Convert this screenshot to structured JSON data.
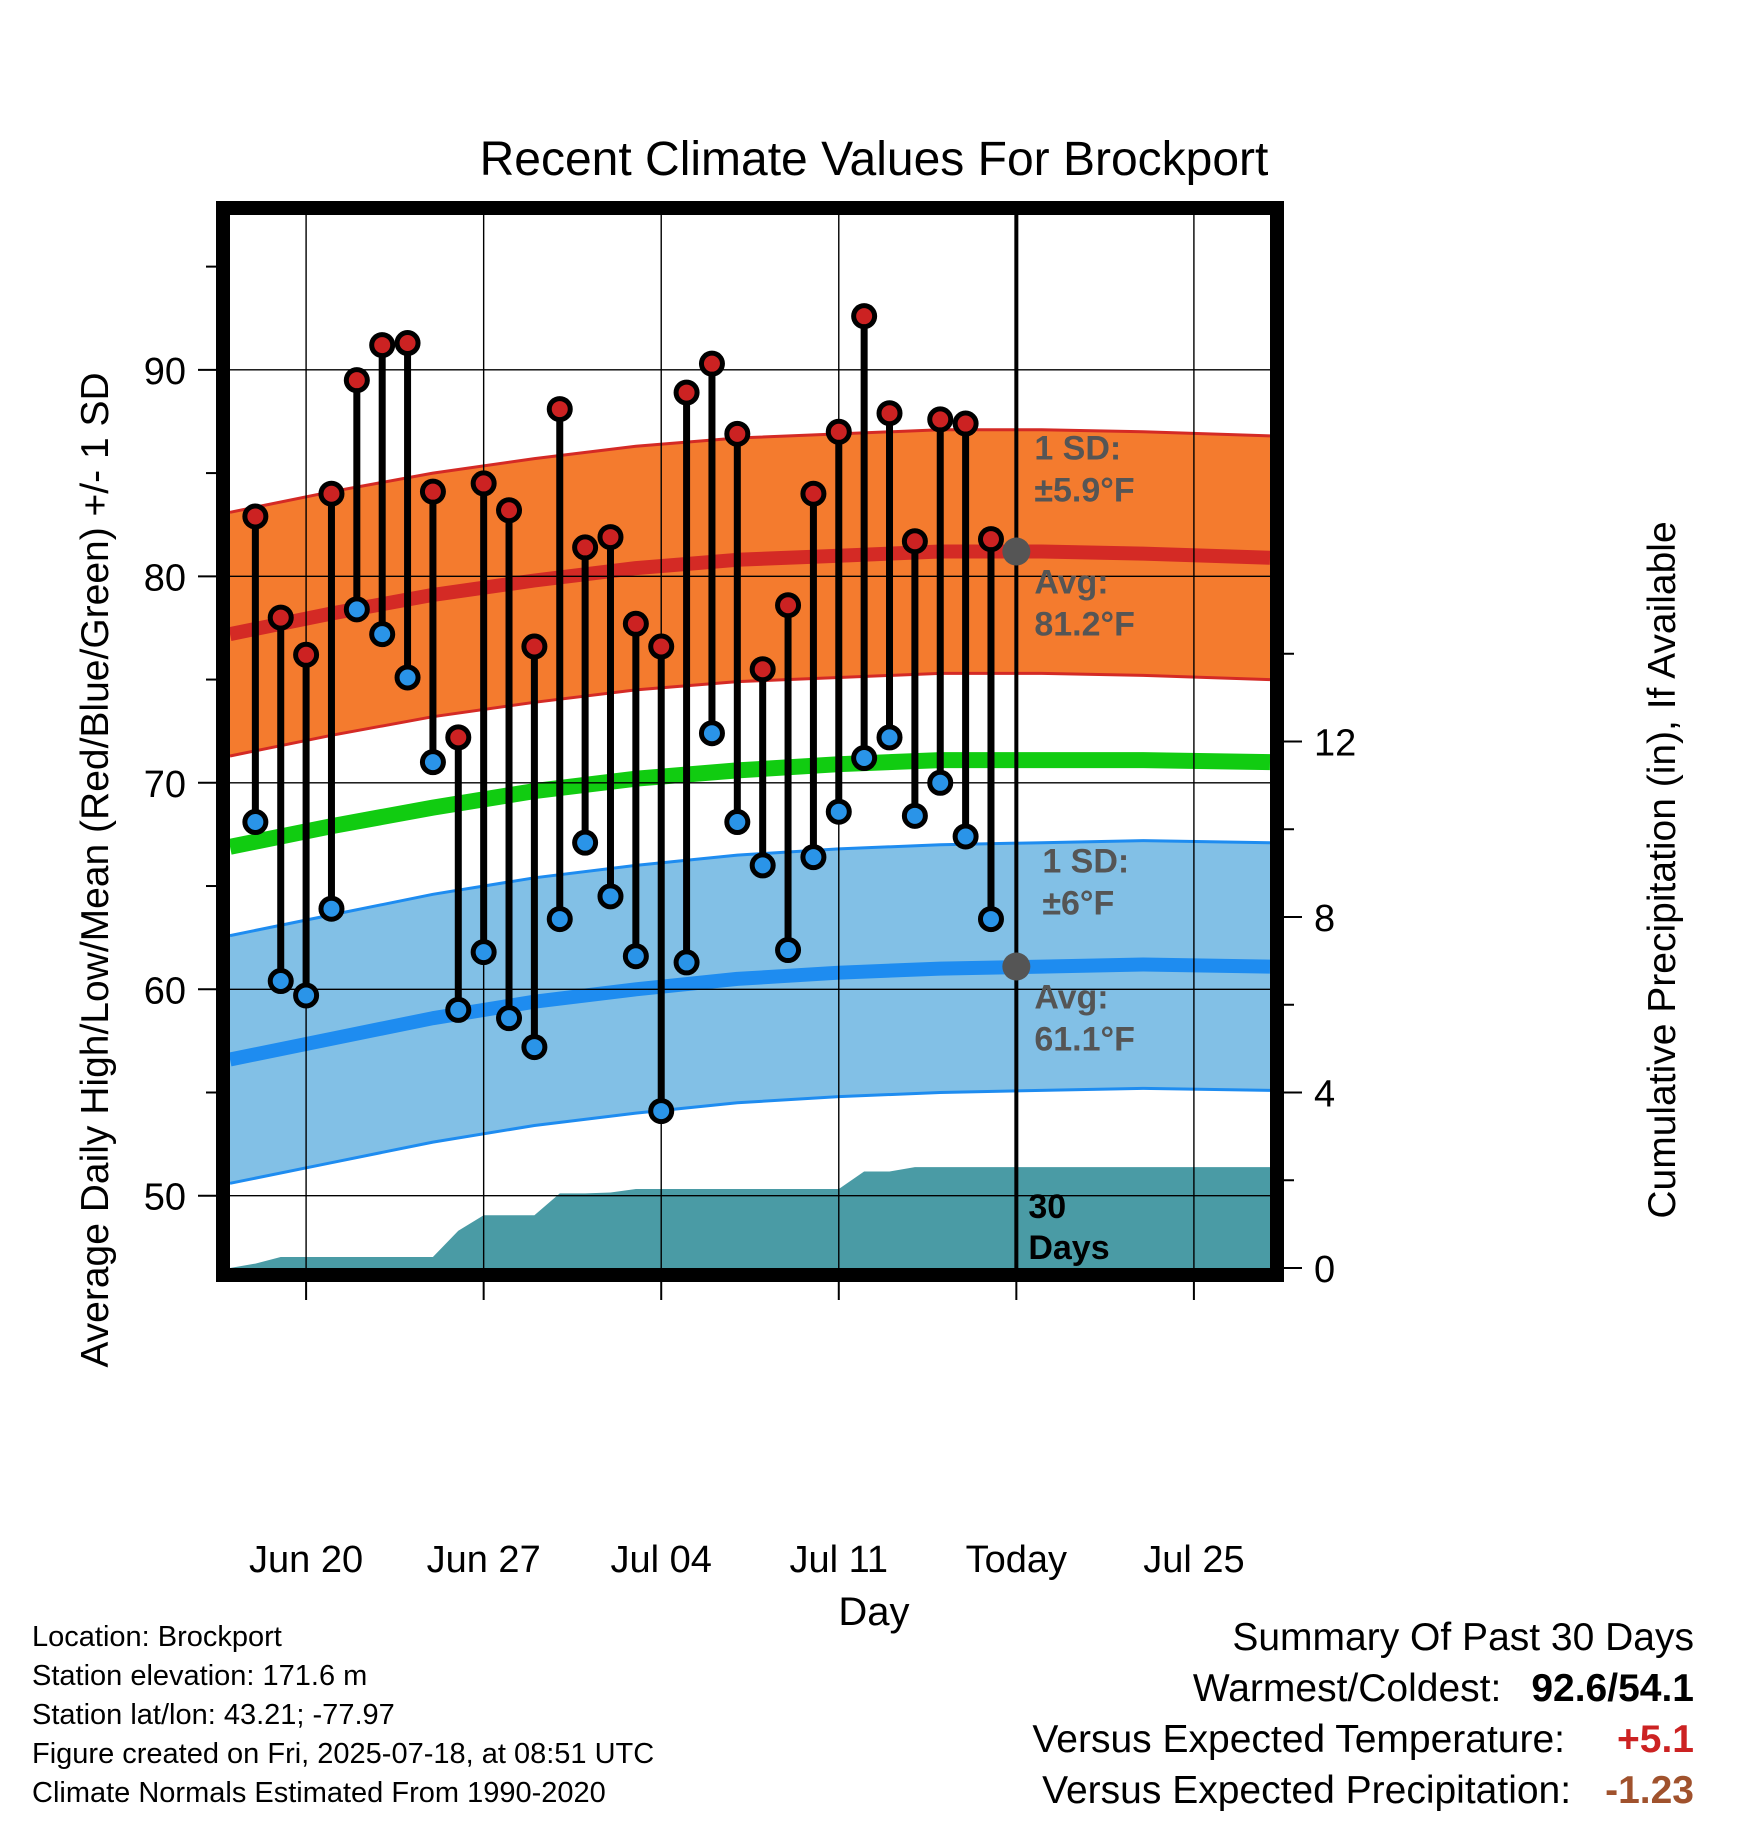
{
  "chart_data": {
    "type": "line",
    "title": "Recent Climate Values For Brockport",
    "xlabel": "Day",
    "ylabel": "Average Daily High/Low/Mean (Red/Blue/Green) +/- 1 SD",
    "ylabel_right": "Cumulative Precipitation (in), If Available",
    "x_range": [
      "2025-06-17",
      "2025-07-28"
    ],
    "x_ticks": [
      {
        "date": "2025-06-20",
        "label": "Jun 20"
      },
      {
        "date": "2025-06-27",
        "label": "Jun 27"
      },
      {
        "date": "2025-07-04",
        "label": "Jul 04"
      },
      {
        "date": "2025-07-11",
        "label": "Jul 11"
      },
      {
        "date": "2025-07-18",
        "label": "Today"
      },
      {
        "date": "2025-07-25",
        "label": "Jul 25"
      }
    ],
    "today": "2025-07-18",
    "ylim": [
      46.5,
      97.5
    ],
    "y_ticks": [
      50,
      60,
      70,
      80,
      90
    ],
    "y2lim": [
      0,
      24
    ],
    "y2_ticks": [
      0,
      4,
      8,
      12
    ],
    "grid": true,
    "colors": {
      "high_fill": "#f47b2e",
      "high_line": "#d42a25",
      "low_fill": "#82c0e6",
      "low_line": "#1e8cf0",
      "mean_line": "#11cc11",
      "precip_fill": "#4a9ba5",
      "high_marker": "#cc2222",
      "low_marker": "#2a94e8",
      "marker_today": "#555555"
    },
    "normals": {
      "dates": [
        "2025-06-17",
        "2025-06-21",
        "2025-06-25",
        "2025-06-29",
        "2025-07-03",
        "2025-07-07",
        "2025-07-11",
        "2025-07-15",
        "2025-07-19",
        "2025-07-23",
        "2025-07-28"
      ],
      "high_avg": [
        77.2,
        78.2,
        79.1,
        79.8,
        80.4,
        80.8,
        81.0,
        81.2,
        81.2,
        81.1,
        80.9
      ],
      "high_sd": 5.9,
      "low_avg": [
        56.6,
        57.6,
        58.6,
        59.4,
        60.0,
        60.5,
        60.8,
        61.0,
        61.1,
        61.2,
        61.1
      ],
      "low_sd": 6,
      "mean_avg": [
        66.9,
        67.9,
        68.8,
        69.6,
        70.2,
        70.6,
        70.9,
        71.1,
        71.1,
        71.1,
        71.0
      ]
    },
    "series": [
      {
        "name": "High",
        "dates": [
          "2025-06-18",
          "2025-06-19",
          "2025-06-20",
          "2025-06-21",
          "2025-06-22",
          "2025-06-23",
          "2025-06-24",
          "2025-06-25",
          "2025-06-26",
          "2025-06-27",
          "2025-06-28",
          "2025-06-29",
          "2025-06-30",
          "2025-07-01",
          "2025-07-02",
          "2025-07-03",
          "2025-07-04",
          "2025-07-05",
          "2025-07-06",
          "2025-07-07",
          "2025-07-08",
          "2025-07-09",
          "2025-07-10",
          "2025-07-11",
          "2025-07-12",
          "2025-07-13",
          "2025-07-14",
          "2025-07-15",
          "2025-07-16",
          "2025-07-17"
        ],
        "values": [
          82.9,
          78.0,
          76.2,
          84.0,
          89.5,
          91.2,
          91.3,
          84.1,
          72.2,
          84.5,
          83.2,
          76.6,
          88.1,
          81.4,
          81.9,
          77.7,
          76.6,
          88.9,
          90.3,
          86.9,
          75.5,
          78.6,
          84.0,
          87.0,
          92.6,
          87.9,
          81.7,
          87.6,
          87.4,
          81.8
        ]
      },
      {
        "name": "Low",
        "dates": [
          "2025-06-18",
          "2025-06-19",
          "2025-06-20",
          "2025-06-21",
          "2025-06-22",
          "2025-06-23",
          "2025-06-24",
          "2025-06-25",
          "2025-06-26",
          "2025-06-27",
          "2025-06-28",
          "2025-06-29",
          "2025-06-30",
          "2025-07-01",
          "2025-07-02",
          "2025-07-03",
          "2025-07-04",
          "2025-07-05",
          "2025-07-06",
          "2025-07-07",
          "2025-07-08",
          "2025-07-09",
          "2025-07-10",
          "2025-07-11",
          "2025-07-12",
          "2025-07-13",
          "2025-07-14",
          "2025-07-15",
          "2025-07-16",
          "2025-07-17"
        ],
        "values": [
          68.1,
          60.4,
          59.7,
          63.9,
          78.4,
          77.2,
          75.1,
          71.0,
          59.0,
          61.8,
          58.6,
          57.2,
          63.4,
          67.1,
          64.5,
          61.6,
          54.1,
          61.3,
          72.4,
          68.1,
          66.0,
          61.9,
          66.4,
          68.6,
          71.2,
          72.2,
          68.4,
          70.0,
          67.4,
          63.4
        ]
      },
      {
        "name": "Cumulative Precipitation",
        "dates": [
          "2025-06-17",
          "2025-06-18",
          "2025-06-19",
          "2025-06-24",
          "2025-06-25",
          "2025-06-26",
          "2025-06-27",
          "2025-06-28",
          "2025-06-29",
          "2025-06-30",
          "2025-07-01",
          "2025-07-02",
          "2025-07-03",
          "2025-07-11",
          "2025-07-12",
          "2025-07-13",
          "2025-07-14",
          "2025-07-28"
        ],
        "values": [
          0.0,
          0.1,
          0.25,
          0.25,
          0.25,
          0.85,
          1.2,
          1.2,
          1.2,
          1.7,
          1.7,
          1.72,
          1.8,
          1.8,
          2.2,
          2.2,
          2.3,
          2.3
        ]
      }
    ],
    "annotations": {
      "high_sd_title": "1 SD:",
      "high_sd_value": "±5.9°F",
      "high_avg_title": "Avg:",
      "high_avg_value": "81.2°F",
      "high_avg_today": 81.2,
      "low_sd_title": "1 SD:",
      "low_sd_value": "±6°F",
      "low_avg_title": "Avg:",
      "low_avg_value": "61.1°F",
      "low_avg_today": 61.1,
      "precip_days_line1": "30",
      "precip_days_line2": "Days"
    }
  },
  "station_info": {
    "location": "Location: Brockport",
    "elevation": "Station elevation: 171.6 m",
    "latlon": "Station lat/lon: 43.21; -77.97",
    "created": "Figure created on Fri, 2025-07-18, at 08:51 UTC",
    "normals": "Climate Normals Estimated From 1990-2020"
  },
  "summary": {
    "title": "Summary Of Past 30 Days",
    "warmest_coldest_label": "Warmest/Coldest:",
    "warmest_coldest_value": "92.6/54.1",
    "temp_label": "Versus Expected Temperature:",
    "temp_value": "+5.1",
    "temp_color": "#cc2222",
    "precip_label": "Versus Expected Precipitation:",
    "precip_value": "-1.23",
    "precip_color": "#a0522d"
  }
}
